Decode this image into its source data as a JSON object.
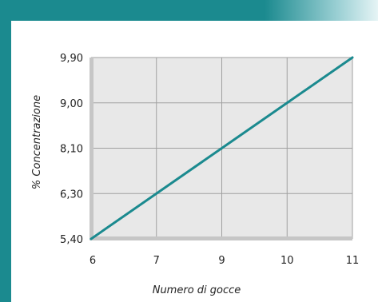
{
  "chart_data": {
    "type": "line",
    "title": "",
    "xlabel": "Numero di gocce",
    "ylabel": "% Concentrazione",
    "x_ticks": [
      "6",
      "7",
      "9",
      "10",
      "11"
    ],
    "y_ticks": [
      "5,40",
      "6,30",
      "8,10",
      "9,00",
      "9,90"
    ],
    "series": [
      {
        "x": [
          6,
          7,
          9,
          10,
          11
        ],
        "y": [
          5.4,
          6.3,
          8.1,
          9.0,
          9.9
        ]
      }
    ],
    "grid": true,
    "legend": "none"
  },
  "colors": {
    "frame": "#1b8a8f",
    "line": "#1b8a8f",
    "plot_bg": "#e8e8e8",
    "grid": "#a0a0a0"
  }
}
